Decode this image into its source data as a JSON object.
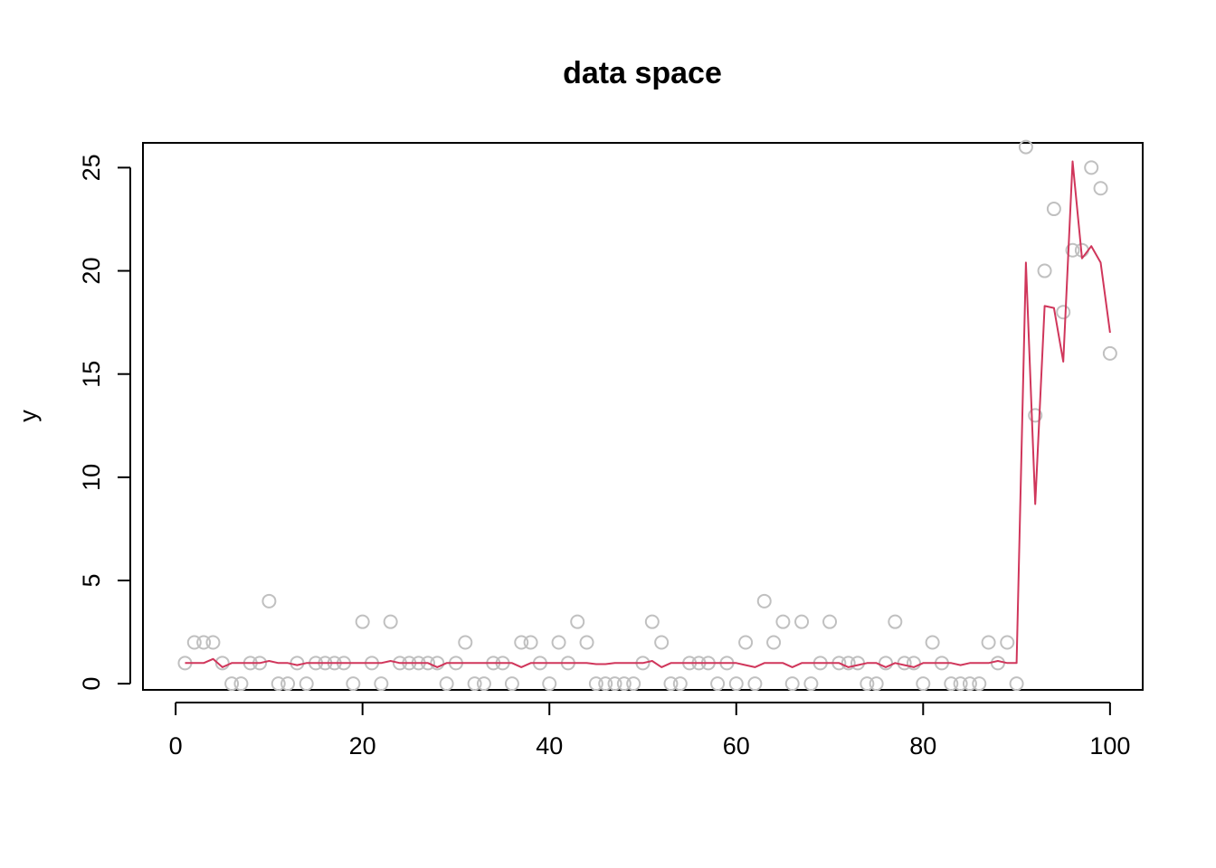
{
  "chart_data": {
    "type": "scatter",
    "title": "data space",
    "xlabel": "",
    "ylabel": "y",
    "xlim": [
      -3.5,
      103.5
    ],
    "ylim": [
      -0.3,
      26.2
    ],
    "xticks": [
      0,
      20,
      40,
      60,
      80,
      100
    ],
    "yticks": [
      0,
      5,
      10,
      15,
      20,
      25
    ],
    "grid": false,
    "legend": "none",
    "colors": {
      "points": "#c0c0c0",
      "line": "#d0365b",
      "axis": "#000000"
    },
    "series": [
      {
        "mode": "points",
        "x": [
          1,
          2,
          3,
          4,
          5,
          6,
          7,
          8,
          9,
          10,
          11,
          12,
          13,
          14,
          15,
          16,
          17,
          18,
          19,
          20,
          21,
          22,
          23,
          24,
          25,
          26,
          27,
          28,
          29,
          30,
          31,
          32,
          33,
          34,
          35,
          36,
          37,
          38,
          39,
          40,
          41,
          42,
          43,
          44,
          45,
          46,
          47,
          48,
          49,
          50,
          51,
          52,
          53,
          54,
          55,
          56,
          57,
          58,
          59,
          60,
          61,
          62,
          63,
          64,
          65,
          66,
          67,
          68,
          69,
          70,
          71,
          72,
          73,
          74,
          75,
          76,
          77,
          78,
          79,
          80,
          81,
          82,
          83,
          84,
          85,
          86,
          87,
          88,
          89,
          90,
          91,
          92,
          93,
          94,
          95,
          96,
          97,
          98,
          99,
          100
        ],
        "y": [
          1,
          2,
          2,
          2,
          1,
          0,
          0,
          1,
          1,
          4,
          0,
          0,
          1,
          0,
          1,
          1,
          1,
          1,
          0,
          3,
          1,
          0,
          3,
          1,
          1,
          1,
          1,
          1,
          0,
          1,
          2,
          0,
          0,
          1,
          1,
          0,
          2,
          2,
          1,
          0,
          2,
          1,
          3,
          2,
          0,
          0,
          0,
          0,
          0,
          1,
          3,
          2,
          0,
          0,
          1,
          1,
          1,
          0,
          1,
          0,
          2,
          0,
          4,
          2,
          3,
          0,
          3,
          0,
          1,
          3,
          1,
          1,
          1,
          0,
          0,
          1,
          3,
          1,
          1,
          0,
          2,
          1,
          0,
          0,
          0,
          0,
          2,
          1,
          2,
          0,
          26,
          13,
          20,
          23,
          18,
          21,
          21,
          25,
          24,
          16
        ]
      },
      {
        "mode": "line",
        "x": [
          1,
          2,
          3,
          4,
          5,
          6,
          7,
          8,
          9,
          10,
          11,
          12,
          13,
          14,
          15,
          16,
          17,
          18,
          19,
          20,
          21,
          22,
          23,
          24,
          25,
          26,
          27,
          28,
          29,
          30,
          31,
          32,
          33,
          34,
          35,
          36,
          37,
          38,
          39,
          40,
          41,
          42,
          43,
          44,
          45,
          46,
          47,
          48,
          49,
          50,
          51,
          52,
          53,
          54,
          55,
          56,
          57,
          58,
          59,
          60,
          61,
          62,
          63,
          64,
          65,
          66,
          67,
          68,
          69,
          70,
          71,
          72,
          73,
          74,
          75,
          76,
          77,
          78,
          79,
          80,
          81,
          82,
          83,
          84,
          85,
          86,
          87,
          88,
          89,
          90,
          91,
          92,
          93,
          94,
          95,
          96,
          97,
          98,
          99,
          100
        ],
        "y": [
          1.0,
          1.0,
          1.0,
          1.2,
          0.8,
          1.0,
          1.0,
          1.0,
          1.0,
          1.1,
          1.0,
          1.0,
          0.9,
          1.0,
          1.0,
          1.0,
          1.0,
          1.0,
          1.0,
          1.0,
          1.0,
          1.0,
          1.1,
          1.0,
          1.0,
          1.0,
          1.0,
          0.8,
          1.0,
          1.0,
          1.0,
          1.0,
          1.0,
          1.0,
          1.0,
          1.0,
          0.8,
          1.0,
          1.0,
          1.0,
          1.0,
          1.0,
          1.0,
          1.0,
          0.95,
          0.95,
          1.0,
          1.0,
          1.0,
          1.0,
          1.1,
          0.8,
          1.0,
          1.0,
          1.0,
          1.0,
          1.0,
          1.0,
          1.0,
          1.0,
          0.9,
          0.8,
          1.0,
          1.0,
          1.0,
          0.8,
          1.0,
          1.0,
          1.0,
          1.0,
          1.0,
          0.8,
          0.9,
          1.0,
          1.0,
          0.8,
          1.0,
          0.9,
          0.8,
          1.0,
          1.0,
          1.0,
          1.0,
          0.9,
          1.0,
          1.0,
          1.0,
          1.1,
          1.0,
          1.0,
          20.4,
          8.7,
          18.3,
          18.2,
          15.6,
          25.3,
          20.6,
          21.2,
          20.4,
          17.0
        ]
      }
    ]
  }
}
